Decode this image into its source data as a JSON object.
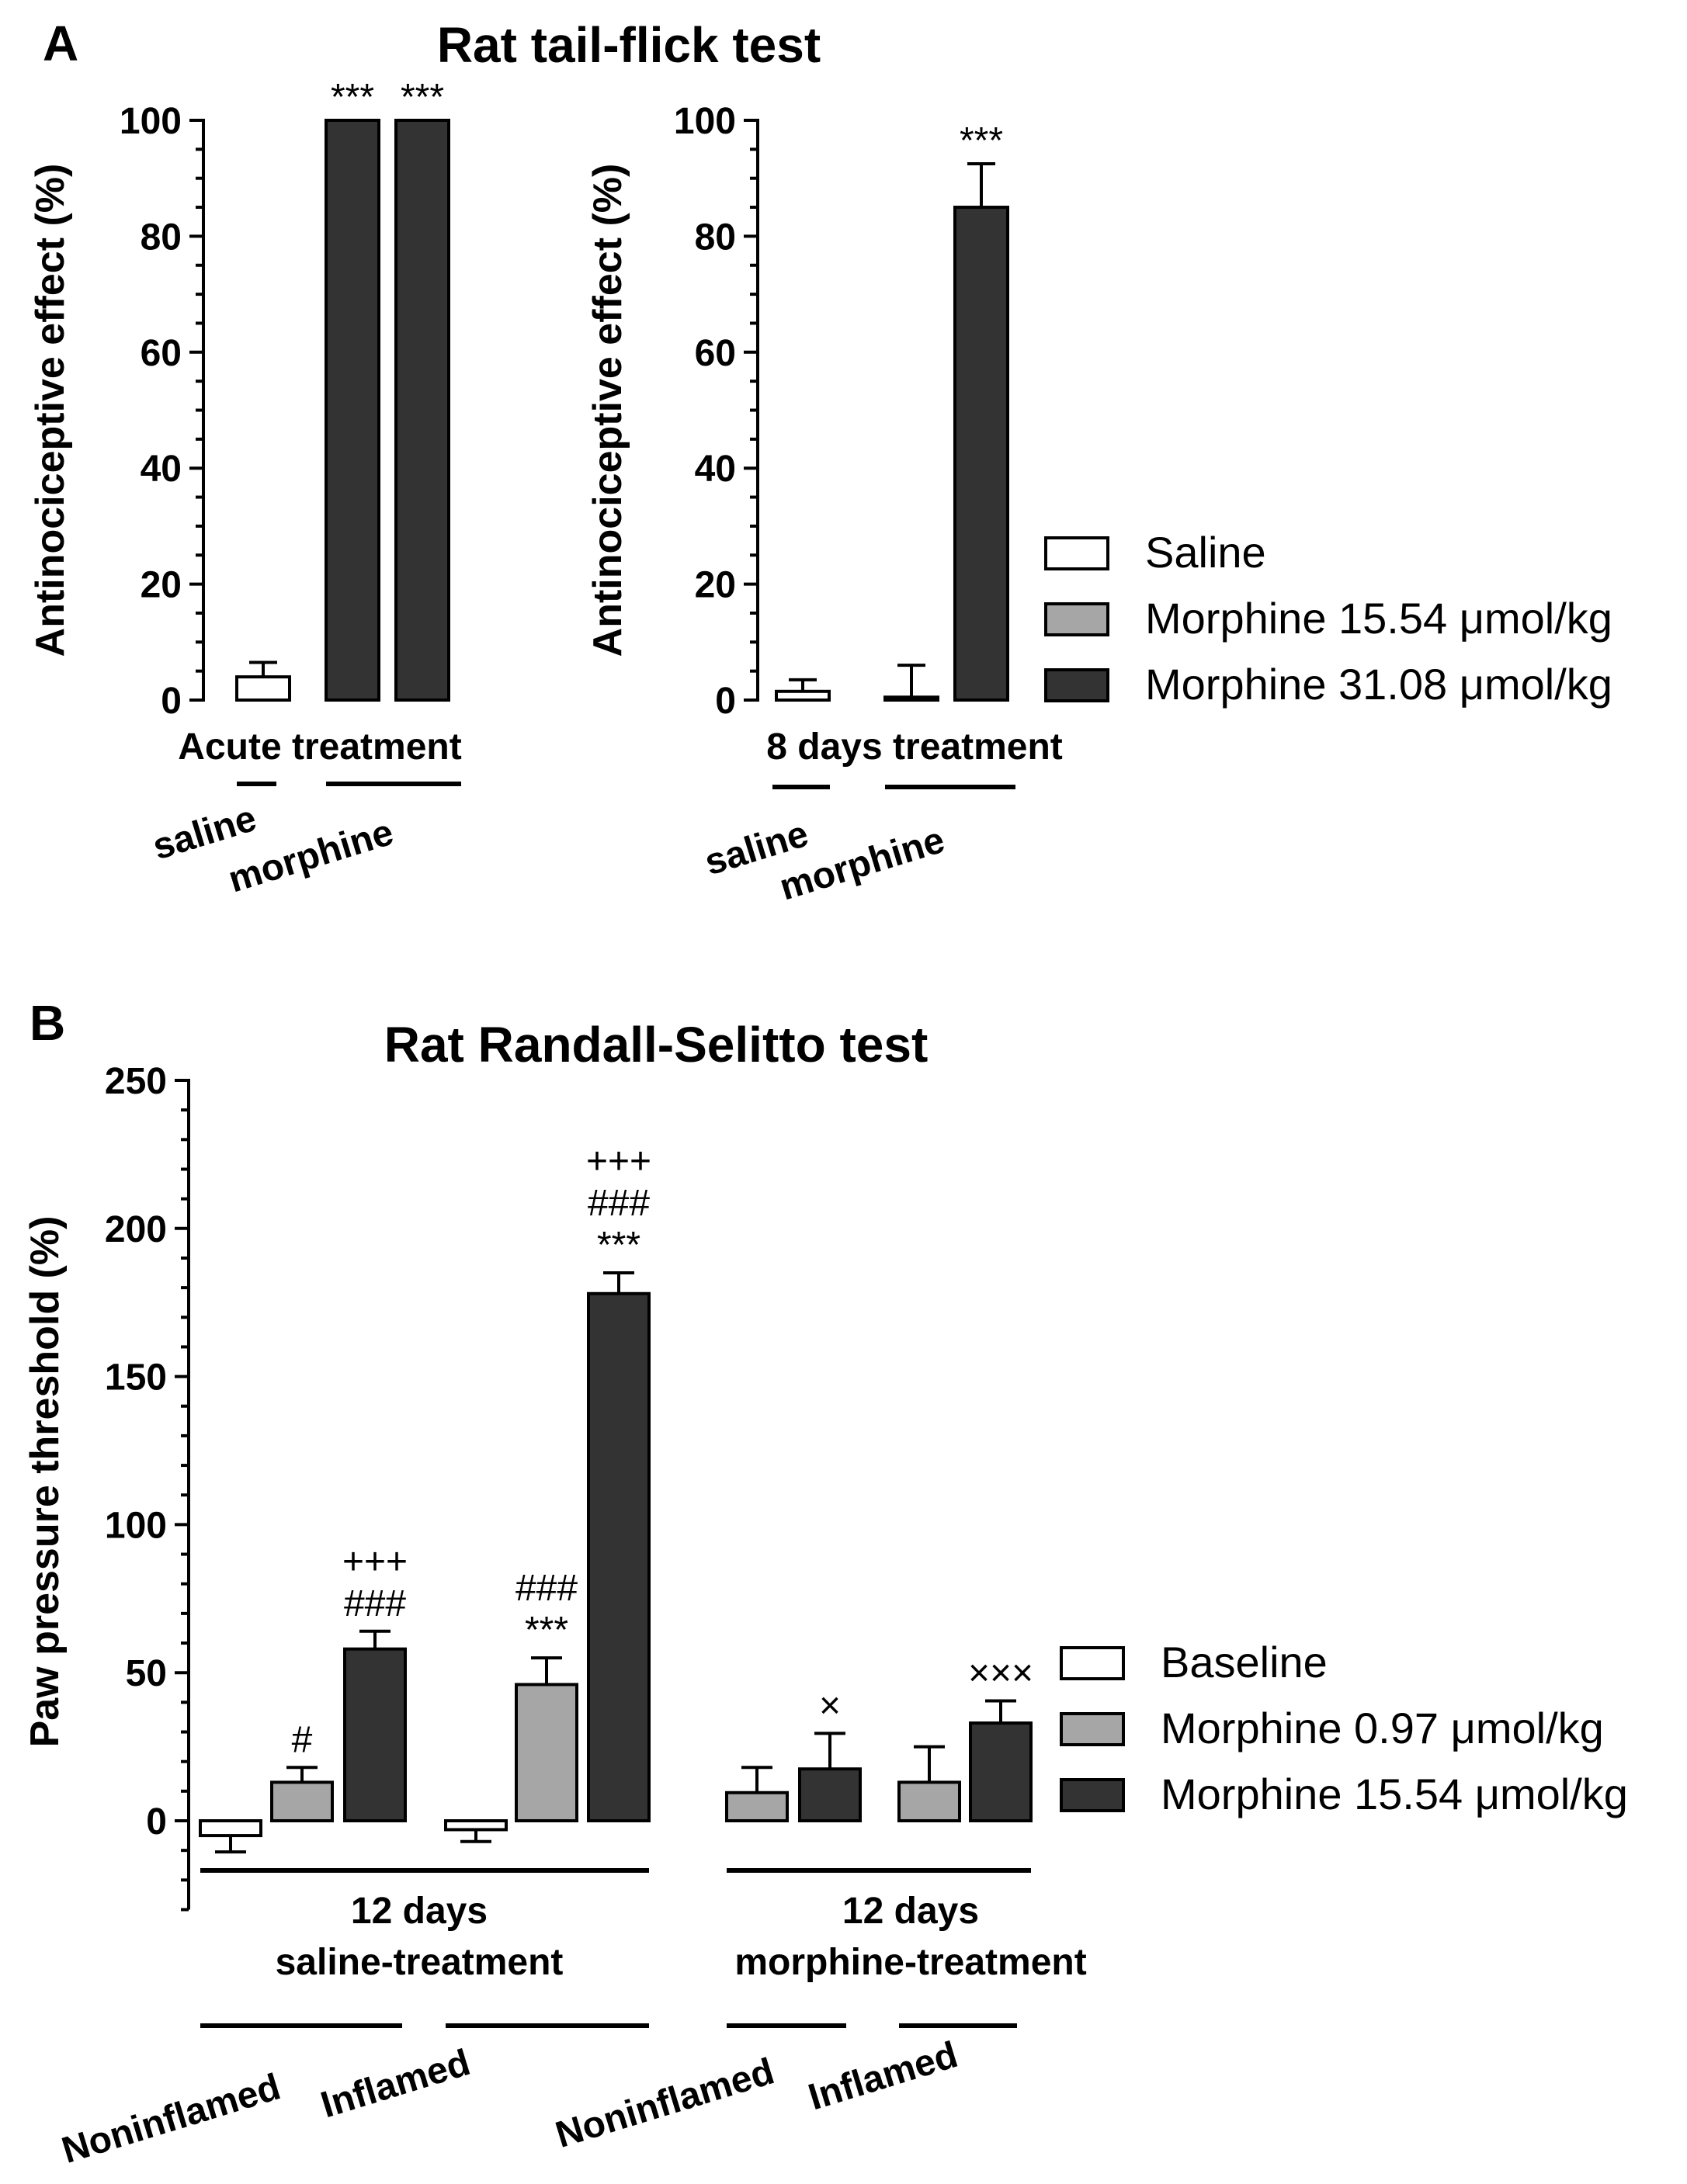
{
  "chart_data": [
    {
      "id": "A-acute",
      "type": "bar",
      "panel_letter": "A",
      "title": "Rat tail-flick test",
      "ylabel": "Antinociceptive effect (%)",
      "ylim": [
        0,
        100
      ],
      "yticks": [
        0,
        20,
        40,
        60,
        80,
        100
      ],
      "ytick_labels": [
        "0",
        "20",
        "40",
        "60",
        "80",
        "100"
      ],
      "xlabel": "Acute treatment",
      "groups": [
        "saline",
        "morphine"
      ],
      "bars": [
        {
          "group": "saline",
          "series": "Saline",
          "value": 4,
          "error": 2.5,
          "annotation": ""
        },
        {
          "group": "morphine",
          "series": "Morphine 15.54 μmol/kg",
          "value": 100,
          "error": 0,
          "annotation": "***"
        },
        {
          "group": "morphine",
          "series": "Morphine 31.08 μmol/kg",
          "value": 100,
          "error": 0,
          "annotation": "***"
        }
      ]
    },
    {
      "id": "A-8days",
      "type": "bar",
      "ylabel": "Antinociceptive effect (%)",
      "ylim": [
        0,
        100
      ],
      "yticks": [
        0,
        20,
        40,
        60,
        80,
        100
      ],
      "ytick_labels": [
        "0",
        "20",
        "40",
        "60",
        "80",
        "100"
      ],
      "xlabel": "8 days treatment",
      "groups": [
        "saline",
        "morphine"
      ],
      "bars": [
        {
          "group": "saline",
          "series": "Saline",
          "value": 1.5,
          "error": 2,
          "annotation": ""
        },
        {
          "group": "morphine",
          "series": "Morphine 15.54 μmol/kg",
          "value": 0.5,
          "error": 5.5,
          "annotation": ""
        },
        {
          "group": "morphine",
          "series": "Morphine 31.08 μmol/kg",
          "value": 85,
          "error": 7.5,
          "annotation": "***"
        }
      ],
      "legend": [
        {
          "label": "Saline",
          "color": "#ffffff"
        },
        {
          "label": "Morphine 15.54 μmol/kg",
          "color": "#a6a6a6"
        },
        {
          "label": "Morphine 31.08 μmol/kg",
          "color": "#333333"
        }
      ]
    },
    {
      "id": "B",
      "type": "bar",
      "panel_letter": "B",
      "title": "Rat Randall-Selitto test",
      "ylabel": "Paw pressure threshold (%)",
      "ylim": [
        -30,
        250
      ],
      "yticks": [
        0,
        50,
        100,
        150,
        200,
        250
      ],
      "ytick_labels": [
        "0",
        "50",
        "100",
        "150",
        "200",
        "250"
      ],
      "treatment_groups": [
        {
          "line1": "12 days",
          "line2": "saline-treatment"
        },
        {
          "line1": "12 days",
          "line2": "morphine-treatment"
        }
      ],
      "subgroups": [
        "Noninflamed",
        "Inflamed",
        "Noninflamed",
        "Inflamed"
      ],
      "bars": [
        {
          "subgroup": 0,
          "series": "Baseline",
          "value": -5,
          "error": 5.5,
          "annotation": []
        },
        {
          "subgroup": 0,
          "series": "Morphine 0.97 μmol/kg",
          "value": 13,
          "error": 5,
          "annotation": [
            "#"
          ]
        },
        {
          "subgroup": 0,
          "series": "Morphine 15.54 μmol/kg",
          "value": 58,
          "error": 6,
          "annotation": [
            "+++",
            "###"
          ]
        },
        {
          "subgroup": 1,
          "series": "Baseline",
          "value": -3,
          "error": 4,
          "annotation": []
        },
        {
          "subgroup": 1,
          "series": "Morphine 0.97 μmol/kg",
          "value": 46,
          "error": 9,
          "annotation": [
            "###",
            "***"
          ]
        },
        {
          "subgroup": 1,
          "series": "Morphine 15.54 μmol/kg",
          "value": 178,
          "error": 7,
          "annotation": [
            "+++",
            "###",
            "***"
          ]
        },
        {
          "subgroup": 2,
          "series": "Morphine 0.97 μmol/kg",
          "value": 9.5,
          "error": 8.5,
          "annotation": []
        },
        {
          "subgroup": 2,
          "series": "Morphine 15.54 μmol/kg",
          "value": 17.5,
          "error": 12,
          "annotation": [
            "×"
          ]
        },
        {
          "subgroup": 3,
          "series": "Morphine 0.97 μmol/kg",
          "value": 13,
          "error": 12,
          "annotation": []
        },
        {
          "subgroup": 3,
          "series": "Morphine 15.54 μmol/kg",
          "value": 33,
          "error": 7.5,
          "annotation": [
            "×××"
          ]
        }
      ],
      "legend": [
        {
          "label": "Baseline",
          "color": "#ffffff"
        },
        {
          "label": "Morphine 0.97 μmol/kg",
          "color": "#a6a6a6"
        },
        {
          "label": "Morphine 15.54 μmol/kg",
          "color": "#333333"
        }
      ]
    }
  ]
}
